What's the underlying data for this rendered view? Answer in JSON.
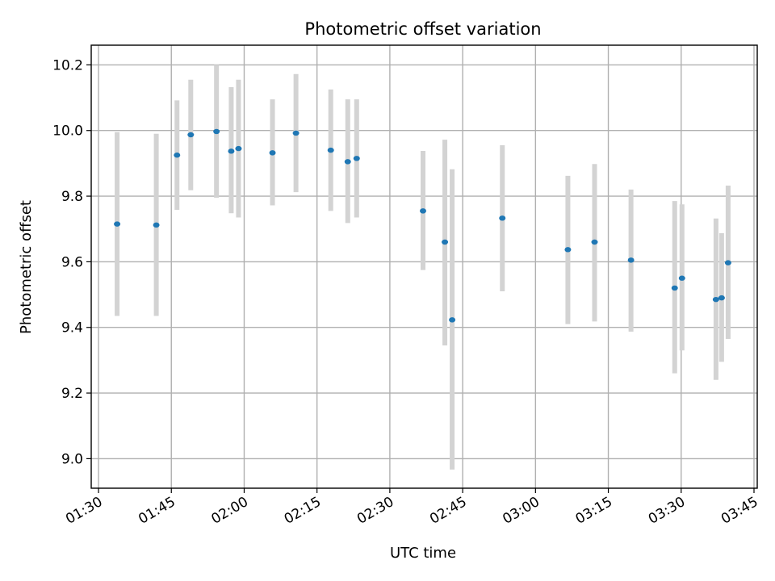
{
  "chart_data": {
    "type": "scatter",
    "title": "Photometric offset variation",
    "xlabel": "UTC time",
    "ylabel": "Photometric offset",
    "grid": true,
    "legend": "none",
    "x_tick_labels": [
      "01:30",
      "01:45",
      "02:00",
      "02:15",
      "02:30",
      "02:45",
      "03:00",
      "03:15",
      "03:30",
      "03:45"
    ],
    "y_tick_labels": [
      "9.0",
      "9.2",
      "9.4",
      "9.6",
      "9.8",
      "10.0",
      "10.2"
    ],
    "y_ticks": [
      9.0,
      9.2,
      9.4,
      9.6,
      9.8,
      10.0,
      10.2
    ],
    "xlim": [
      "01:28:30",
      "03:45:40"
    ],
    "ylim": [
      8.91,
      10.26
    ],
    "colors": {
      "point": "#1f77b4",
      "errorbar": "#d3d3d3"
    },
    "points": [
      {
        "time": "01:33:50",
        "value": 9.715,
        "low": 9.435,
        "high": 9.995
      },
      {
        "time": "01:41:54",
        "value": 9.712,
        "low": 9.435,
        "high": 9.99
      },
      {
        "time": "01:46:10",
        "value": 9.925,
        "low": 9.758,
        "high": 10.092
      },
      {
        "time": "01:49:00",
        "value": 9.987,
        "low": 9.818,
        "high": 10.155
      },
      {
        "time": "01:54:18",
        "value": 9.997,
        "low": 9.795,
        "high": 10.2
      },
      {
        "time": "01:57:20",
        "value": 9.937,
        "low": 9.748,
        "high": 10.132
      },
      {
        "time": "01:58:50",
        "value": 9.945,
        "low": 9.735,
        "high": 10.155
      },
      {
        "time": "02:05:50",
        "value": 9.932,
        "low": 9.772,
        "high": 10.095
      },
      {
        "time": "02:10:40",
        "value": 9.992,
        "low": 9.812,
        "high": 10.172
      },
      {
        "time": "02:17:50",
        "value": 9.94,
        "low": 9.755,
        "high": 10.125
      },
      {
        "time": "02:21:20",
        "value": 9.905,
        "low": 9.718,
        "high": 10.095
      },
      {
        "time": "02:23:10",
        "value": 9.915,
        "low": 9.735,
        "high": 10.095
      },
      {
        "time": "02:36:50",
        "value": 9.755,
        "low": 9.575,
        "high": 9.938
      },
      {
        "time": "02:41:20",
        "value": 9.66,
        "low": 9.345,
        "high": 9.972
      },
      {
        "time": "02:42:50",
        "value": 9.423,
        "low": 8.967,
        "high": 9.882
      },
      {
        "time": "02:53:10",
        "value": 9.733,
        "low": 9.51,
        "high": 9.955
      },
      {
        "time": "03:06:40",
        "value": 9.637,
        "low": 9.41,
        "high": 9.862
      },
      {
        "time": "03:12:10",
        "value": 9.66,
        "low": 9.418,
        "high": 9.898
      },
      {
        "time": "03:19:40",
        "value": 9.605,
        "low": 9.387,
        "high": 9.82
      },
      {
        "time": "03:28:40",
        "value": 9.52,
        "low": 9.26,
        "high": 9.785
      },
      {
        "time": "03:30:10",
        "value": 9.55,
        "low": 9.33,
        "high": 9.775
      },
      {
        "time": "03:37:10",
        "value": 9.485,
        "low": 9.24,
        "high": 9.732
      },
      {
        "time": "03:38:20",
        "value": 9.49,
        "low": 9.295,
        "high": 9.687
      },
      {
        "time": "03:39:40",
        "value": 9.597,
        "low": 9.365,
        "high": 9.832
      }
    ]
  }
}
